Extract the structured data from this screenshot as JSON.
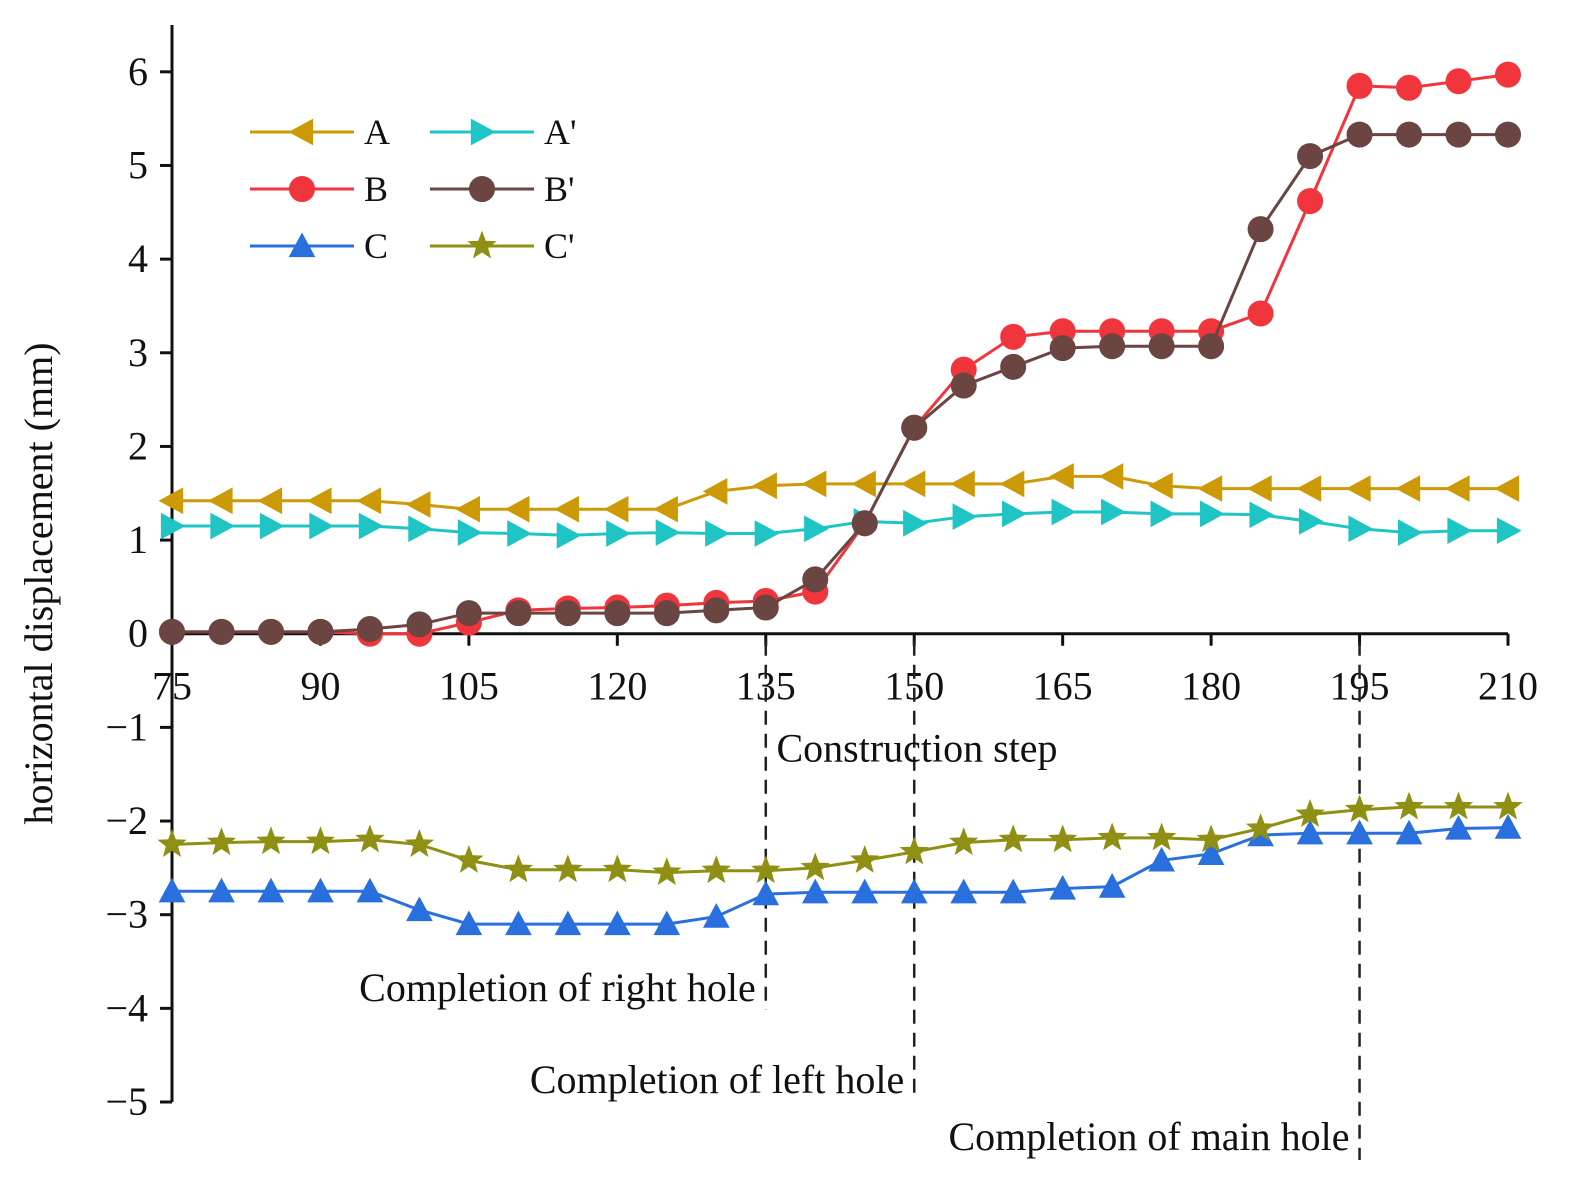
{
  "chart_data": {
    "type": "line",
    "title": "",
    "xlabel": "Construction step",
    "ylabel": "horizontal displacement (mm)",
    "xlim": [
      75,
      210
    ],
    "ylim": [
      -5,
      6.5
    ],
    "xticks": [
      75,
      90,
      105,
      120,
      135,
      150,
      165,
      180,
      195,
      210
    ],
    "yticks": [
      -5,
      -4,
      -3,
      -2,
      -1,
      0,
      1,
      2,
      3,
      4,
      5,
      6
    ],
    "grid": false,
    "legend_position": "top-left",
    "x": [
      75,
      80,
      85,
      90,
      95,
      100,
      105,
      110,
      115,
      120,
      125,
      130,
      135,
      140,
      145,
      150,
      155,
      160,
      165,
      170,
      175,
      180,
      185,
      190,
      195,
      200,
      205,
      210
    ],
    "series": [
      {
        "name": "A",
        "color": "#cc9a06",
        "marker": "triangle-left",
        "values": [
          1.42,
          1.42,
          1.42,
          1.42,
          1.42,
          1.38,
          1.33,
          1.33,
          1.33,
          1.33,
          1.33,
          1.52,
          1.58,
          1.6,
          1.6,
          1.6,
          1.6,
          1.6,
          1.68,
          1.68,
          1.58,
          1.55,
          1.55,
          1.55,
          1.55,
          1.55,
          1.55,
          1.55
        ]
      },
      {
        "name": "A'",
        "color": "#1fc4c4",
        "marker": "triangle-right",
        "values": [
          1.15,
          1.15,
          1.15,
          1.15,
          1.15,
          1.12,
          1.08,
          1.07,
          1.05,
          1.07,
          1.08,
          1.07,
          1.07,
          1.12,
          1.2,
          1.18,
          1.25,
          1.28,
          1.3,
          1.3,
          1.28,
          1.28,
          1.27,
          1.2,
          1.12,
          1.08,
          1.1,
          1.1
        ]
      },
      {
        "name": "B",
        "color": "#f0363c",
        "marker": "circle",
        "values": [
          0.02,
          0.02,
          0.02,
          0.02,
          0.0,
          0.0,
          0.12,
          0.25,
          0.27,
          0.28,
          0.3,
          0.33,
          0.35,
          0.45,
          1.18,
          2.2,
          2.82,
          3.17,
          3.23,
          3.23,
          3.23,
          3.23,
          3.42,
          4.62,
          5.85,
          5.83,
          5.9,
          5.97
        ]
      },
      {
        "name": "B'",
        "color": "#6b4541",
        "marker": "circle",
        "values": [
          0.02,
          0.02,
          0.02,
          0.02,
          0.05,
          0.1,
          0.22,
          0.22,
          0.22,
          0.22,
          0.22,
          0.25,
          0.28,
          0.58,
          1.18,
          2.2,
          2.65,
          2.85,
          3.05,
          3.07,
          3.07,
          3.07,
          4.32,
          5.1,
          5.33,
          5.33,
          5.33,
          5.33
        ]
      },
      {
        "name": "C",
        "color": "#2a6fde",
        "marker": "triangle-up",
        "values": [
          -2.75,
          -2.75,
          -2.75,
          -2.75,
          -2.75,
          -2.95,
          -3.1,
          -3.1,
          -3.1,
          -3.1,
          -3.1,
          -3.02,
          -2.78,
          -2.76,
          -2.76,
          -2.76,
          -2.76,
          -2.76,
          -2.72,
          -2.7,
          -2.42,
          -2.35,
          -2.15,
          -2.13,
          -2.13,
          -2.13,
          -2.08,
          -2.07
        ]
      },
      {
        "name": "C'",
        "color": "#8f8f14",
        "marker": "star",
        "values": [
          -2.25,
          -2.23,
          -2.22,
          -2.22,
          -2.2,
          -2.25,
          -2.42,
          -2.52,
          -2.52,
          -2.52,
          -2.55,
          -2.53,
          -2.53,
          -2.5,
          -2.42,
          -2.33,
          -2.23,
          -2.2,
          -2.2,
          -2.18,
          -2.18,
          -2.2,
          -2.08,
          -1.93,
          -1.88,
          -1.85,
          -1.85,
          -1.85
        ]
      }
    ],
    "annotations": [
      {
        "text": "Completion of right hole",
        "x": 135
      },
      {
        "text": "Completion of left hole",
        "x": 150
      },
      {
        "text": "Completion of main hole",
        "x": 195
      }
    ]
  }
}
